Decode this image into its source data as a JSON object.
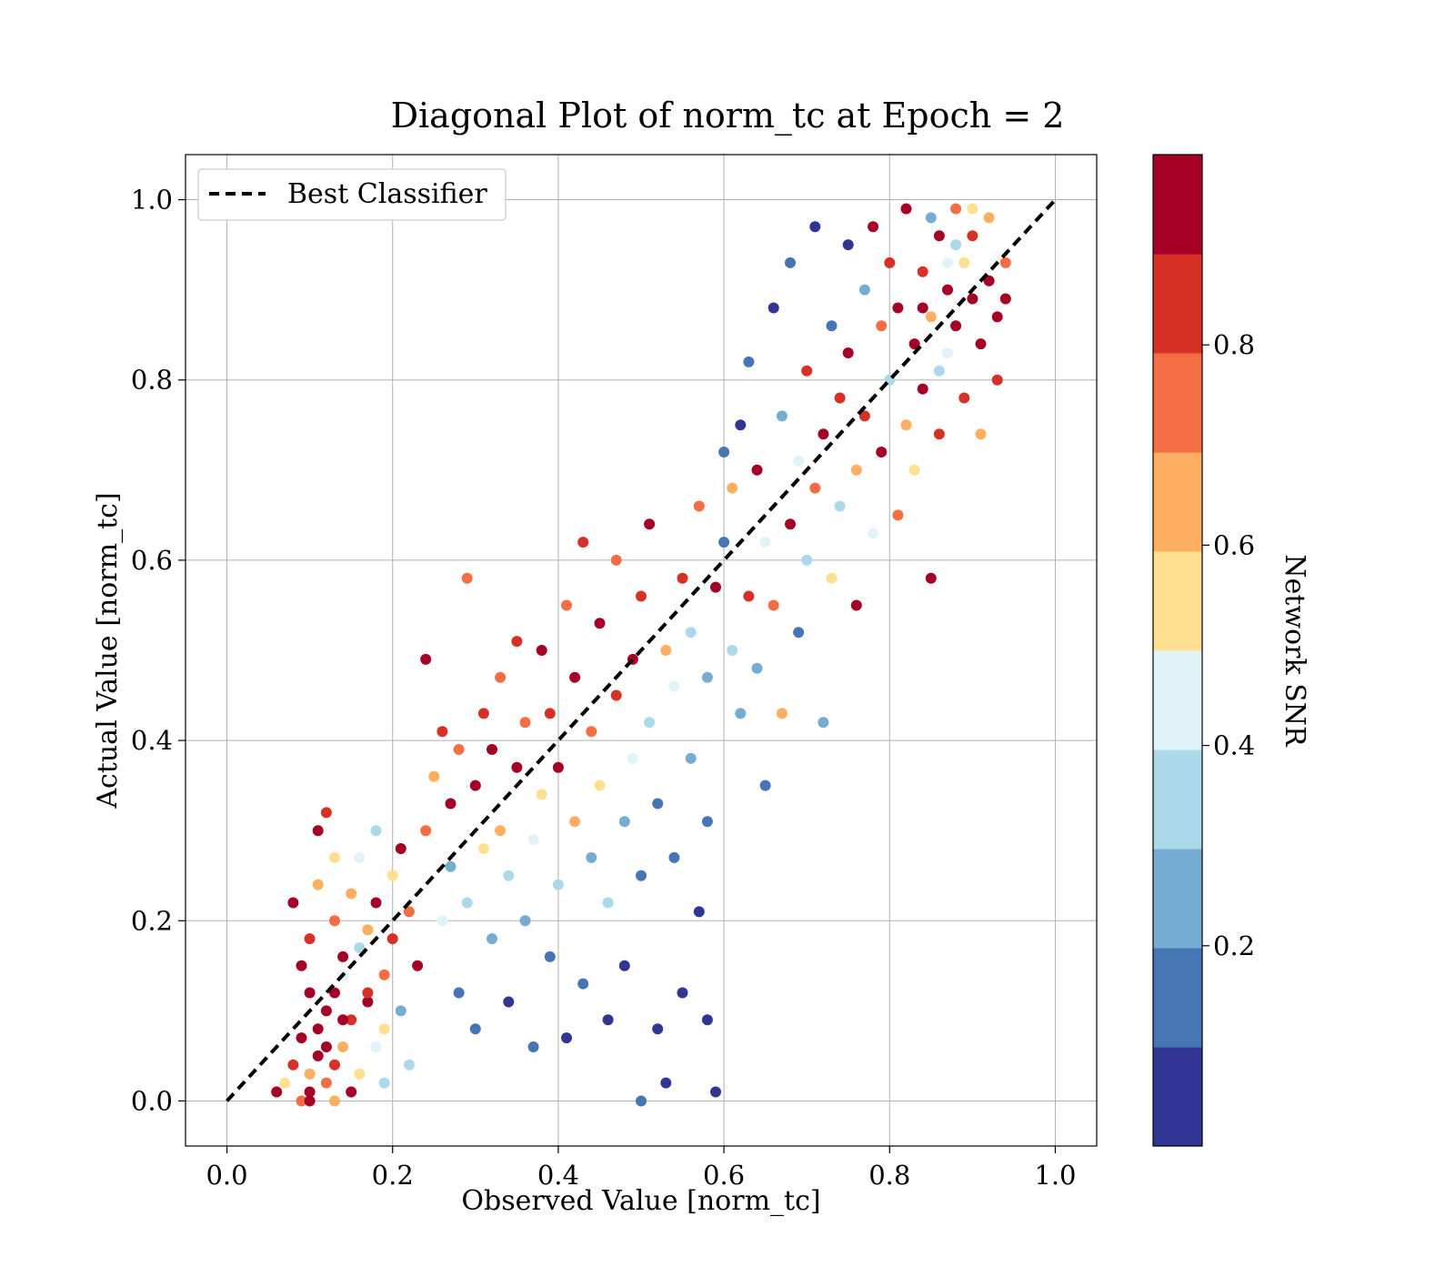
{
  "chart_data": {
    "type": "scatter",
    "title": "Diagonal Plot of norm_tc at Epoch = 2",
    "xlabel": "Observed Value [norm_tc]",
    "ylabel": "Actual Value [norm_tc]",
    "xlim": [
      -0.05,
      1.05
    ],
    "ylim": [
      -0.05,
      1.05
    ],
    "xticks": [
      "0.0",
      "0.2",
      "0.4",
      "0.6",
      "0.8",
      "1.0"
    ],
    "yticks": [
      "0.0",
      "0.2",
      "0.4",
      "0.6",
      "0.8",
      "1.0"
    ],
    "grid": true,
    "legend": {
      "placement": "top-left",
      "entries": [
        "Best Classifier"
      ]
    },
    "reference_line": {
      "name": "Best Classifier",
      "style": "dashed",
      "color": "#000000",
      "x": [
        0,
        1
      ],
      "y": [
        0,
        1
      ]
    },
    "colorbar": {
      "label": "Network SNR",
      "range": [
        0.0,
        0.99
      ],
      "ticks": [
        "0.2",
        "0.4",
        "0.6",
        "0.8"
      ],
      "colormap": [
        "#313695",
        "#4575b4",
        "#74add1",
        "#abd9e9",
        "#e0f3f8",
        "#fee090",
        "#fdae61",
        "#f46d43",
        "#d73027",
        "#a50026"
      ]
    },
    "points": [
      [
        0.06,
        0.01,
        0.95
      ],
      [
        0.07,
        0.02,
        0.55
      ],
      [
        0.08,
        0.04,
        0.88
      ],
      [
        0.09,
        0.0,
        0.75
      ],
      [
        0.1,
        0.01,
        0.92
      ],
      [
        0.1,
        0.03,
        0.6
      ],
      [
        0.11,
        0.05,
        0.98
      ],
      [
        0.11,
        0.08,
        0.95
      ],
      [
        0.12,
        0.02,
        0.7
      ],
      [
        0.12,
        0.1,
        0.9
      ],
      [
        0.13,
        0.04,
        0.85
      ],
      [
        0.13,
        0.12,
        0.95
      ],
      [
        0.14,
        0.06,
        0.65
      ],
      [
        0.14,
        0.14,
        0.45
      ],
      [
        0.15,
        0.01,
        0.93
      ],
      [
        0.15,
        0.09,
        0.8
      ],
      [
        0.16,
        0.17,
        0.35
      ],
      [
        0.16,
        0.03,
        0.5
      ],
      [
        0.17,
        0.11,
        0.9
      ],
      [
        0.17,
        0.19,
        0.6
      ],
      [
        0.18,
        0.06,
        0.4
      ],
      [
        0.18,
        0.22,
        0.95
      ],
      [
        0.19,
        0.14,
        0.75
      ],
      [
        0.19,
        0.02,
        0.3
      ],
      [
        0.2,
        0.18,
        0.85
      ],
      [
        0.2,
        0.25,
        0.55
      ],
      [
        0.21,
        0.1,
        0.2
      ],
      [
        0.21,
        0.28,
        0.9
      ],
      [
        0.22,
        0.04,
        0.35
      ],
      [
        0.22,
        0.21,
        0.7
      ],
      [
        0.08,
        0.22,
        0.95
      ],
      [
        0.09,
        0.15,
        0.9
      ],
      [
        0.1,
        0.18,
        0.8
      ],
      [
        0.11,
        0.24,
        0.6
      ],
      [
        0.11,
        0.3,
        0.95
      ],
      [
        0.12,
        0.32,
        0.85
      ],
      [
        0.13,
        0.2,
        0.75
      ],
      [
        0.13,
        0.27,
        0.5
      ],
      [
        0.14,
        0.16,
        0.92
      ],
      [
        0.15,
        0.23,
        0.65
      ],
      [
        0.16,
        0.27,
        0.4
      ],
      [
        0.17,
        0.12,
        0.88
      ],
      [
        0.18,
        0.3,
        0.3
      ],
      [
        0.19,
        0.08,
        0.55
      ],
      [
        0.1,
        0.12,
        0.98
      ],
      [
        0.09,
        0.07,
        0.9
      ],
      [
        0.12,
        0.06,
        0.95
      ],
      [
        0.14,
        0.09,
        0.97
      ],
      [
        0.1,
        0.0,
        0.9
      ],
      [
        0.13,
        0.0,
        0.6
      ],
      [
        0.23,
        0.15,
        0.9
      ],
      [
        0.24,
        0.3,
        0.75
      ],
      [
        0.24,
        0.49,
        0.95
      ],
      [
        0.25,
        0.36,
        0.6
      ],
      [
        0.26,
        0.2,
        0.4
      ],
      [
        0.26,
        0.41,
        0.88
      ],
      [
        0.27,
        0.26,
        0.2
      ],
      [
        0.27,
        0.33,
        0.95
      ],
      [
        0.28,
        0.12,
        0.1
      ],
      [
        0.28,
        0.39,
        0.7
      ],
      [
        0.29,
        0.58,
        0.75
      ],
      [
        0.29,
        0.22,
        0.3
      ],
      [
        0.3,
        0.35,
        0.9
      ],
      [
        0.3,
        0.08,
        0.15
      ],
      [
        0.31,
        0.28,
        0.5
      ],
      [
        0.31,
        0.43,
        0.85
      ],
      [
        0.32,
        0.18,
        0.25
      ],
      [
        0.32,
        0.39,
        0.98
      ],
      [
        0.33,
        0.3,
        0.6
      ],
      [
        0.33,
        0.47,
        0.75
      ],
      [
        0.34,
        0.11,
        0.05
      ],
      [
        0.34,
        0.25,
        0.35
      ],
      [
        0.35,
        0.37,
        0.92
      ],
      [
        0.35,
        0.51,
        0.85
      ],
      [
        0.36,
        0.2,
        0.2
      ],
      [
        0.36,
        0.42,
        0.7
      ],
      [
        0.37,
        0.06,
        0.15
      ],
      [
        0.37,
        0.29,
        0.45
      ],
      [
        0.38,
        0.5,
        0.9
      ],
      [
        0.38,
        0.34,
        0.55
      ],
      [
        0.39,
        0.16,
        0.1
      ],
      [
        0.39,
        0.43,
        0.8
      ],
      [
        0.4,
        0.24,
        0.3
      ],
      [
        0.4,
        0.37,
        0.95
      ],
      [
        0.41,
        0.55,
        0.7
      ],
      [
        0.41,
        0.07,
        0.05
      ],
      [
        0.42,
        0.31,
        0.6
      ],
      [
        0.42,
        0.47,
        0.9
      ],
      [
        0.43,
        0.13,
        0.1
      ],
      [
        0.43,
        0.62,
        0.85
      ],
      [
        0.44,
        0.27,
        0.25
      ],
      [
        0.44,
        0.41,
        0.75
      ],
      [
        0.45,
        0.35,
        0.5
      ],
      [
        0.45,
        0.53,
        0.95
      ],
      [
        0.46,
        0.09,
        0.05
      ],
      [
        0.46,
        0.22,
        0.35
      ],
      [
        0.47,
        0.45,
        0.88
      ],
      [
        0.47,
        0.6,
        0.7
      ],
      [
        0.48,
        0.31,
        0.2
      ],
      [
        0.48,
        0.15,
        0.05
      ],
      [
        0.49,
        0.49,
        0.95
      ],
      [
        0.49,
        0.38,
        0.4
      ],
      [
        0.5,
        0.0,
        0.1
      ],
      [
        0.5,
        0.25,
        0.15
      ],
      [
        0.5,
        0.56,
        0.8
      ],
      [
        0.51,
        0.42,
        0.3
      ],
      [
        0.51,
        0.64,
        0.95
      ],
      [
        0.52,
        0.08,
        0.05
      ],
      [
        0.52,
        0.33,
        0.15
      ],
      [
        0.53,
        0.5,
        0.6
      ],
      [
        0.53,
        0.02,
        0.05
      ],
      [
        0.54,
        0.27,
        0.1
      ],
      [
        0.54,
        0.46,
        0.45
      ],
      [
        0.55,
        0.58,
        0.85
      ],
      [
        0.55,
        0.12,
        0.05
      ],
      [
        0.56,
        0.38,
        0.2
      ],
      [
        0.56,
        0.52,
        0.35
      ],
      [
        0.57,
        0.21,
        0.05
      ],
      [
        0.57,
        0.66,
        0.7
      ],
      [
        0.58,
        0.09,
        0.05
      ],
      [
        0.58,
        0.31,
        0.1
      ],
      [
        0.58,
        0.47,
        0.25
      ],
      [
        0.59,
        0.57,
        0.9
      ],
      [
        0.59,
        0.01,
        0.05
      ],
      [
        0.6,
        0.62,
        0.15
      ],
      [
        0.6,
        0.72,
        0.1
      ],
      [
        0.61,
        0.5,
        0.3
      ],
      [
        0.61,
        0.68,
        0.6
      ],
      [
        0.62,
        0.43,
        0.2
      ],
      [
        0.62,
        0.75,
        0.05
      ],
      [
        0.63,
        0.56,
        0.85
      ],
      [
        0.63,
        0.82,
        0.15
      ],
      [
        0.64,
        0.48,
        0.25
      ],
      [
        0.64,
        0.7,
        0.9
      ],
      [
        0.65,
        0.35,
        0.15
      ],
      [
        0.65,
        0.62,
        0.45
      ],
      [
        0.66,
        0.88,
        0.05
      ],
      [
        0.66,
        0.55,
        0.7
      ],
      [
        0.67,
        0.76,
        0.25
      ],
      [
        0.67,
        0.43,
        0.6
      ],
      [
        0.68,
        0.64,
        0.95
      ],
      [
        0.68,
        0.93,
        0.1
      ],
      [
        0.69,
        0.71,
        0.4
      ],
      [
        0.69,
        0.52,
        0.15
      ],
      [
        0.7,
        0.81,
        0.85
      ],
      [
        0.7,
        0.6,
        0.3
      ],
      [
        0.71,
        0.68,
        0.75
      ],
      [
        0.71,
        0.97,
        0.05
      ],
      [
        0.72,
        0.42,
        0.2
      ],
      [
        0.72,
        0.74,
        0.95
      ],
      [
        0.73,
        0.86,
        0.15
      ],
      [
        0.73,
        0.58,
        0.55
      ],
      [
        0.74,
        0.78,
        0.88
      ],
      [
        0.74,
        0.66,
        0.35
      ],
      [
        0.75,
        0.95,
        0.05
      ],
      [
        0.75,
        0.83,
        0.9
      ],
      [
        0.76,
        0.7,
        0.6
      ],
      [
        0.76,
        0.55,
        0.95
      ],
      [
        0.77,
        0.9,
        0.25
      ],
      [
        0.77,
        0.76,
        0.8
      ],
      [
        0.78,
        0.63,
        0.45
      ],
      [
        0.78,
        0.97,
        0.92
      ],
      [
        0.79,
        0.86,
        0.7
      ],
      [
        0.79,
        0.72,
        0.95
      ],
      [
        0.8,
        0.8,
        0.35
      ],
      [
        0.8,
        0.93,
        0.85
      ],
      [
        0.81,
        0.65,
        0.75
      ],
      [
        0.81,
        0.88,
        0.98
      ],
      [
        0.82,
        0.75,
        0.6
      ],
      [
        0.82,
        0.99,
        0.95
      ],
      [
        0.83,
        0.84,
        0.9
      ],
      [
        0.83,
        0.7,
        0.5
      ],
      [
        0.84,
        0.92,
        0.8
      ],
      [
        0.84,
        0.79,
        0.95
      ],
      [
        0.85,
        0.58,
        0.9
      ],
      [
        0.85,
        0.87,
        0.65
      ],
      [
        0.86,
        0.96,
        0.92
      ],
      [
        0.86,
        0.74,
        0.85
      ],
      [
        0.87,
        0.9,
        0.98
      ],
      [
        0.87,
        0.83,
        0.4
      ],
      [
        0.88,
        0.99,
        0.75
      ],
      [
        0.88,
        0.86,
        0.95
      ],
      [
        0.89,
        0.78,
        0.88
      ],
      [
        0.89,
        0.93,
        0.55
      ],
      [
        0.9,
        0.89,
        0.9
      ],
      [
        0.9,
        0.96,
        0.85
      ],
      [
        0.91,
        0.84,
        0.95
      ],
      [
        0.91,
        0.74,
        0.6
      ],
      [
        0.92,
        0.91,
        0.92
      ],
      [
        0.92,
        0.98,
        0.65
      ],
      [
        0.93,
        0.8,
        0.85
      ],
      [
        0.93,
        0.87,
        0.95
      ],
      [
        0.94,
        0.93,
        0.7
      ],
      [
        0.94,
        0.89,
        0.9
      ],
      [
        0.86,
        0.81,
        0.3
      ],
      [
        0.87,
        0.93,
        0.45
      ],
      [
        0.85,
        0.98,
        0.2
      ],
      [
        0.88,
        0.95,
        0.35
      ],
      [
        0.9,
        0.99,
        0.5
      ],
      [
        0.84,
        0.88,
        0.97
      ]
    ]
  }
}
